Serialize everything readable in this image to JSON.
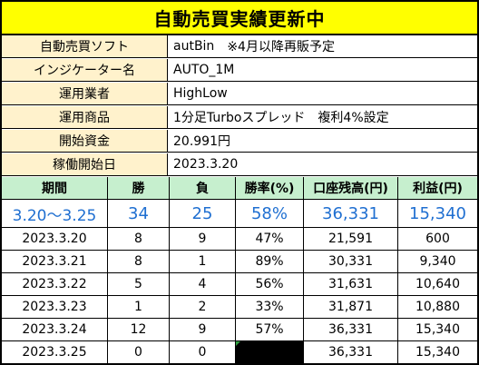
{
  "title": "自動売買実績更新中",
  "info": [
    {
      "label": "自動売買ソフト",
      "value": "autBin",
      "note": "※4月以降再販予定"
    },
    {
      "label": "インジケーター名",
      "value": "AUTO_1M",
      "note": ""
    },
    {
      "label": "運用業者",
      "value": "HighLow",
      "note": ""
    },
    {
      "label": "運用商品",
      "value": "1分足Turboスプレッド　複利4%設定",
      "note": ""
    },
    {
      "label": "開始資金",
      "value": "20.991円",
      "note": ""
    },
    {
      "label": "稼働開始日",
      "value": "2023.3.20",
      "note": ""
    }
  ],
  "columns": [
    "期間",
    "勝",
    "負",
    "勝率(%)",
    "口座残高(円)",
    "利益(円)"
  ],
  "summary": [
    "3.20～3.25",
    "34",
    "25",
    "58%",
    "36,331",
    "15,340"
  ],
  "rows": [
    [
      "2023.3.20",
      "8",
      "9",
      "47%",
      "21,591",
      "600"
    ],
    [
      "2023.3.21",
      "8",
      "1",
      "89%",
      "30,331",
      "9,340"
    ],
    [
      "2023.3.22",
      "5",
      "4",
      "56%",
      "31,631",
      "10,640"
    ],
    [
      "2023.3.23",
      "1",
      "2",
      "33%",
      "31,871",
      "10,880"
    ],
    [
      "2023.3.24",
      "12",
      "9",
      "57%",
      "36,331",
      "15,340"
    ],
    [
      "2023.3.25",
      "0",
      "0",
      "",
      "36,331",
      "15,340"
    ]
  ],
  "colors": {
    "title_bg": "#ffff00",
    "label_bg": "#fff2cc",
    "header_bg": "#c6efce",
    "summary_text": "#1f6fd1"
  }
}
